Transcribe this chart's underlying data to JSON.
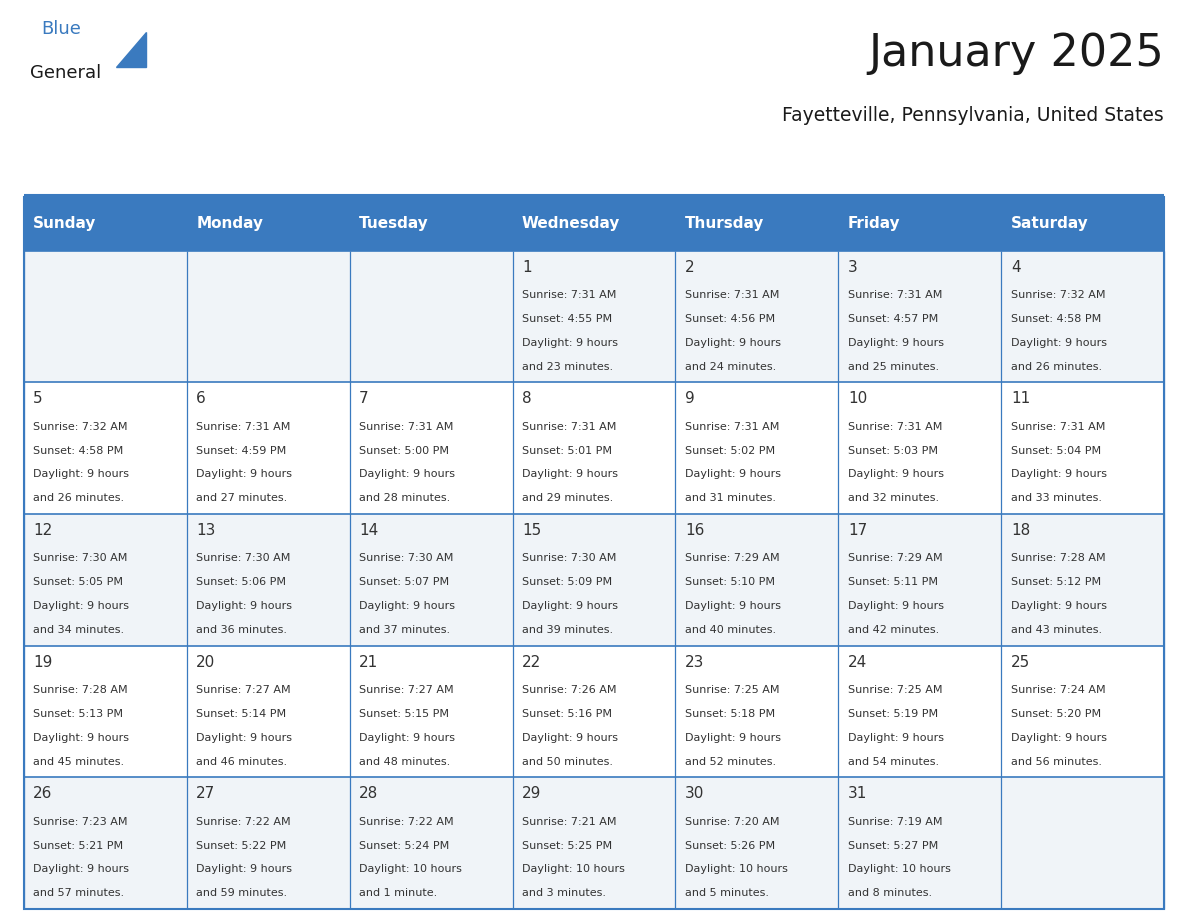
{
  "title": "January 2025",
  "subtitle": "Fayetteville, Pennsylvania, United States",
  "days_of_week": [
    "Sunday",
    "Monday",
    "Tuesday",
    "Wednesday",
    "Thursday",
    "Friday",
    "Saturday"
  ],
  "header_bg": "#3a7abf",
  "header_text": "#ffffff",
  "cell_bg_odd": "#f0f4f8",
  "cell_bg_even": "#ffffff",
  "cell_border": "#3a7abf",
  "day_number_color": "#333333",
  "cell_text_color": "#333333",
  "title_color": "#1a1a1a",
  "subtitle_color": "#1a1a1a",
  "logo_general_color": "#1a1a1a",
  "logo_blue_color": "#3a7abf",
  "calendar_data": [
    [
      null,
      null,
      null,
      {
        "day": 1,
        "sunrise": "7:31 AM",
        "sunset": "4:55 PM",
        "daylight_l1": "Daylight: 9 hours",
        "daylight_l2": "and 23 minutes."
      },
      {
        "day": 2,
        "sunrise": "7:31 AM",
        "sunset": "4:56 PM",
        "daylight_l1": "Daylight: 9 hours",
        "daylight_l2": "and 24 minutes."
      },
      {
        "day": 3,
        "sunrise": "7:31 AM",
        "sunset": "4:57 PM",
        "daylight_l1": "Daylight: 9 hours",
        "daylight_l2": "and 25 minutes."
      },
      {
        "day": 4,
        "sunrise": "7:32 AM",
        "sunset": "4:58 PM",
        "daylight_l1": "Daylight: 9 hours",
        "daylight_l2": "and 26 minutes."
      }
    ],
    [
      {
        "day": 5,
        "sunrise": "7:32 AM",
        "sunset": "4:58 PM",
        "daylight_l1": "Daylight: 9 hours",
        "daylight_l2": "and 26 minutes."
      },
      {
        "day": 6,
        "sunrise": "7:31 AM",
        "sunset": "4:59 PM",
        "daylight_l1": "Daylight: 9 hours",
        "daylight_l2": "and 27 minutes."
      },
      {
        "day": 7,
        "sunrise": "7:31 AM",
        "sunset": "5:00 PM",
        "daylight_l1": "Daylight: 9 hours",
        "daylight_l2": "and 28 minutes."
      },
      {
        "day": 8,
        "sunrise": "7:31 AM",
        "sunset": "5:01 PM",
        "daylight_l1": "Daylight: 9 hours",
        "daylight_l2": "and 29 minutes."
      },
      {
        "day": 9,
        "sunrise": "7:31 AM",
        "sunset": "5:02 PM",
        "daylight_l1": "Daylight: 9 hours",
        "daylight_l2": "and 31 minutes."
      },
      {
        "day": 10,
        "sunrise": "7:31 AM",
        "sunset": "5:03 PM",
        "daylight_l1": "Daylight: 9 hours",
        "daylight_l2": "and 32 minutes."
      },
      {
        "day": 11,
        "sunrise": "7:31 AM",
        "sunset": "5:04 PM",
        "daylight_l1": "Daylight: 9 hours",
        "daylight_l2": "and 33 minutes."
      }
    ],
    [
      {
        "day": 12,
        "sunrise": "7:30 AM",
        "sunset": "5:05 PM",
        "daylight_l1": "Daylight: 9 hours",
        "daylight_l2": "and 34 minutes."
      },
      {
        "day": 13,
        "sunrise": "7:30 AM",
        "sunset": "5:06 PM",
        "daylight_l1": "Daylight: 9 hours",
        "daylight_l2": "and 36 minutes."
      },
      {
        "day": 14,
        "sunrise": "7:30 AM",
        "sunset": "5:07 PM",
        "daylight_l1": "Daylight: 9 hours",
        "daylight_l2": "and 37 minutes."
      },
      {
        "day": 15,
        "sunrise": "7:30 AM",
        "sunset": "5:09 PM",
        "daylight_l1": "Daylight: 9 hours",
        "daylight_l2": "and 39 minutes."
      },
      {
        "day": 16,
        "sunrise": "7:29 AM",
        "sunset": "5:10 PM",
        "daylight_l1": "Daylight: 9 hours",
        "daylight_l2": "and 40 minutes."
      },
      {
        "day": 17,
        "sunrise": "7:29 AM",
        "sunset": "5:11 PM",
        "daylight_l1": "Daylight: 9 hours",
        "daylight_l2": "and 42 minutes."
      },
      {
        "day": 18,
        "sunrise": "7:28 AM",
        "sunset": "5:12 PM",
        "daylight_l1": "Daylight: 9 hours",
        "daylight_l2": "and 43 minutes."
      }
    ],
    [
      {
        "day": 19,
        "sunrise": "7:28 AM",
        "sunset": "5:13 PM",
        "daylight_l1": "Daylight: 9 hours",
        "daylight_l2": "and 45 minutes."
      },
      {
        "day": 20,
        "sunrise": "7:27 AM",
        "sunset": "5:14 PM",
        "daylight_l1": "Daylight: 9 hours",
        "daylight_l2": "and 46 minutes."
      },
      {
        "day": 21,
        "sunrise": "7:27 AM",
        "sunset": "5:15 PM",
        "daylight_l1": "Daylight: 9 hours",
        "daylight_l2": "and 48 minutes."
      },
      {
        "day": 22,
        "sunrise": "7:26 AM",
        "sunset": "5:16 PM",
        "daylight_l1": "Daylight: 9 hours",
        "daylight_l2": "and 50 minutes."
      },
      {
        "day": 23,
        "sunrise": "7:25 AM",
        "sunset": "5:18 PM",
        "daylight_l1": "Daylight: 9 hours",
        "daylight_l2": "and 52 minutes."
      },
      {
        "day": 24,
        "sunrise": "7:25 AM",
        "sunset": "5:19 PM",
        "daylight_l1": "Daylight: 9 hours",
        "daylight_l2": "and 54 minutes."
      },
      {
        "day": 25,
        "sunrise": "7:24 AM",
        "sunset": "5:20 PM",
        "daylight_l1": "Daylight: 9 hours",
        "daylight_l2": "and 56 minutes."
      }
    ],
    [
      {
        "day": 26,
        "sunrise": "7:23 AM",
        "sunset": "5:21 PM",
        "daylight_l1": "Daylight: 9 hours",
        "daylight_l2": "and 57 minutes."
      },
      {
        "day": 27,
        "sunrise": "7:22 AM",
        "sunset": "5:22 PM",
        "daylight_l1": "Daylight: 9 hours",
        "daylight_l2": "and 59 minutes."
      },
      {
        "day": 28,
        "sunrise": "7:22 AM",
        "sunset": "5:24 PM",
        "daylight_l1": "Daylight: 10 hours",
        "daylight_l2": "and 1 minute."
      },
      {
        "day": 29,
        "sunrise": "7:21 AM",
        "sunset": "5:25 PM",
        "daylight_l1": "Daylight: 10 hours",
        "daylight_l2": "and 3 minutes."
      },
      {
        "day": 30,
        "sunrise": "7:20 AM",
        "sunset": "5:26 PM",
        "daylight_l1": "Daylight: 10 hours",
        "daylight_l2": "and 5 minutes."
      },
      {
        "day": 31,
        "sunrise": "7:19 AM",
        "sunset": "5:27 PM",
        "daylight_l1": "Daylight: 10 hours",
        "daylight_l2": "and 8 minutes."
      },
      null
    ]
  ]
}
